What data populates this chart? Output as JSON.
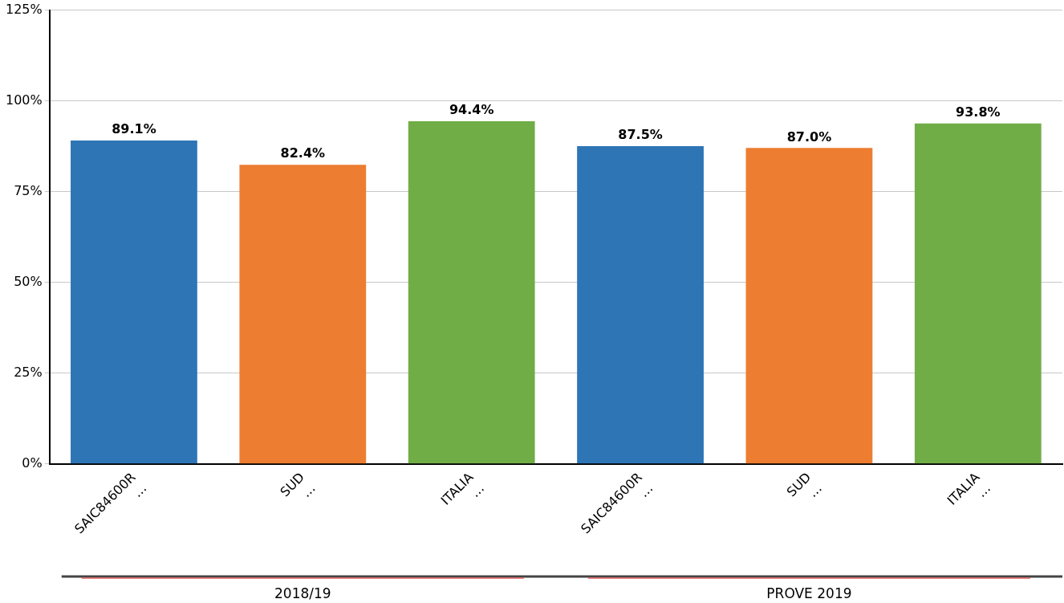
{
  "chart_data": {
    "type": "bar",
    "categories": [
      "SAIC84600R\n…",
      "SUD\n…",
      "ITALIA\n…",
      "SAIC84600R\n…",
      "SUD\n…",
      "ITALIA\n…"
    ],
    "values": [
      89.1,
      82.4,
      94.4,
      87.5,
      87.0,
      93.8
    ],
    "colors": [
      "#2e75b6",
      "#ed7d31",
      "#70ad47",
      "#2e75b6",
      "#ed7d31",
      "#70ad47"
    ],
    "value_labels": [
      "89.1%",
      "82.4%",
      "94.4%",
      "87.5%",
      "87.0%",
      "93.8%"
    ],
    "ylim": [
      0,
      125
    ],
    "yticks": [
      {
        "value": 0,
        "label": "0%"
      },
      {
        "value": 25,
        "label": "25%"
      },
      {
        "value": 50,
        "label": "50%"
      },
      {
        "value": 75,
        "label": "75%"
      },
      {
        "value": 100,
        "label": "100%"
      },
      {
        "value": 125,
        "label": "125%"
      }
    ],
    "grid": "y",
    "legend": false,
    "annotations": [
      "2018/19",
      "PROVE 2019"
    ]
  }
}
